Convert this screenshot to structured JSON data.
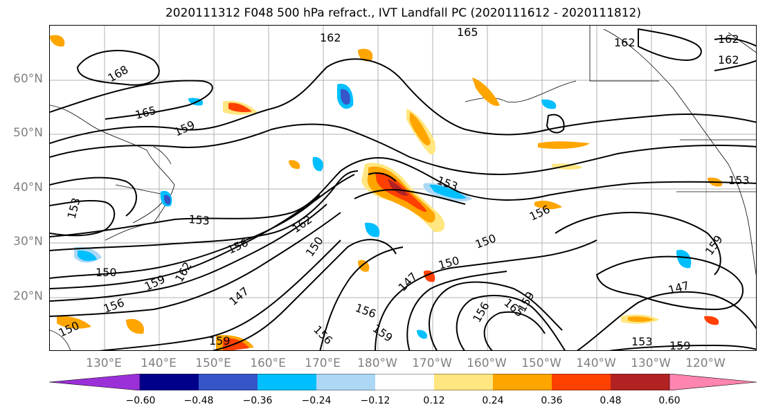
{
  "title": "2020111312 F048 500 hPa refract., IVT Landfall PC (2020111612 - 2020111812)",
  "lat_labels": [
    "60°N",
    "50°N",
    "40°N",
    "30°N",
    "20°N"
  ],
  "lon_labels": [
    "130°E",
    "140°E",
    "150°E",
    "160°E",
    "170°E",
    "180°W",
    "170°W",
    "160°W",
    "150°W",
    "140°W",
    "130°W",
    "120°W"
  ],
  "colorbar": {
    "ticks": [
      "−0.60",
      "−0.48",
      "−0.36",
      "−0.24",
      "−0.12",
      "0.12",
      "0.24",
      "0.36",
      "0.48",
      "0.60"
    ],
    "colors": [
      "#9b30d9",
      "#00008b",
      "#3655c8",
      "#00bfff",
      "#add8f5",
      "#ffffff",
      "#ffe680",
      "#ffa500",
      "#ff4000",
      "#b22222",
      "#ff85b0"
    ]
  },
  "contour_labels": [
    {
      "text": "168"
    },
    {
      "text": "165"
    },
    {
      "text": "159"
    },
    {
      "text": "162"
    },
    {
      "text": "165"
    },
    {
      "text": "162"
    },
    {
      "text": "162"
    },
    {
      "text": "162"
    },
    {
      "text": "153"
    },
    {
      "text": "153"
    },
    {
      "text": "162"
    },
    {
      "text": "156"
    },
    {
      "text": "150"
    },
    {
      "text": "150"
    },
    {
      "text": "159"
    },
    {
      "text": "162"
    },
    {
      "text": "147"
    },
    {
      "text": "156"
    },
    {
      "text": "150"
    },
    {
      "text": "147"
    },
    {
      "text": "153"
    },
    {
      "text": "150"
    },
    {
      "text": "150"
    },
    {
      "text": "147"
    },
    {
      "text": "156"
    },
    {
      "text": "159"
    },
    {
      "text": "156"
    },
    {
      "text": "156"
    },
    {
      "text": "159"
    },
    {
      "text": "156"
    },
    {
      "text": "165"
    },
    {
      "text": "159"
    },
    {
      "text": "153"
    },
    {
      "text": "159"
    },
    {
      "text": "153"
    },
    {
      "text": "159"
    }
  ]
}
